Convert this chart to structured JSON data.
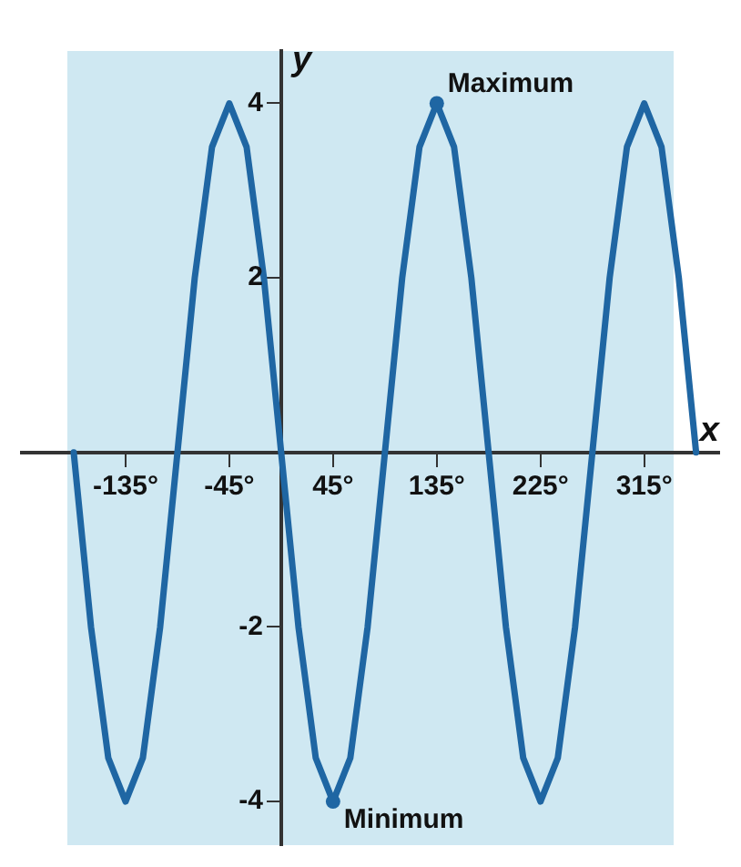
{
  "chart_data": {
    "type": "line",
    "xlabel": "x",
    "ylabel": "y",
    "x": [
      -180,
      -165,
      -150,
      -135,
      -120,
      -105,
      -90,
      -75,
      -60,
      -45,
      -30,
      -15,
      0,
      15,
      30,
      45,
      60,
      75,
      90,
      105,
      120,
      135,
      150,
      165,
      180,
      195,
      210,
      225,
      240,
      255,
      270,
      285,
      300,
      315,
      330,
      345,
      360
    ],
    "series": [
      {
        "color": "#1f66a3",
        "values": [
          0,
          -2,
          -3.5,
          -4,
          -3.5,
          -2,
          0,
          2,
          3.5,
          4,
          3.5,
          2,
          0,
          -2,
          -3.5,
          -4,
          -3.5,
          -2,
          0,
          2,
          3.5,
          4,
          3.5,
          2,
          0,
          -2,
          -3.5,
          -4,
          -3.5,
          -2,
          0,
          2,
          3.5,
          4,
          3.5,
          2,
          0
        ]
      }
    ],
    "xlim": [
      -225,
      380
    ],
    "ylim": [
      -4.5,
      4.6
    ],
    "xticks": [
      {
        "value": -135,
        "label": "-135°"
      },
      {
        "value": -45,
        "label": "-45°"
      },
      {
        "value": 45,
        "label": "45°"
      },
      {
        "value": 135,
        "label": "135°"
      },
      {
        "value": 225,
        "label": "225°"
      },
      {
        "value": 315,
        "label": "315°"
      }
    ],
    "yticks": [
      -4,
      -2,
      2,
      4
    ],
    "annotations": [
      {
        "text": "Maximum",
        "x": 135,
        "y": 4
      },
      {
        "text": "Minimum",
        "x": 45,
        "y": -4
      }
    ],
    "marker": "none",
    "line_style": "solid",
    "grid": false,
    "legend": false
  }
}
